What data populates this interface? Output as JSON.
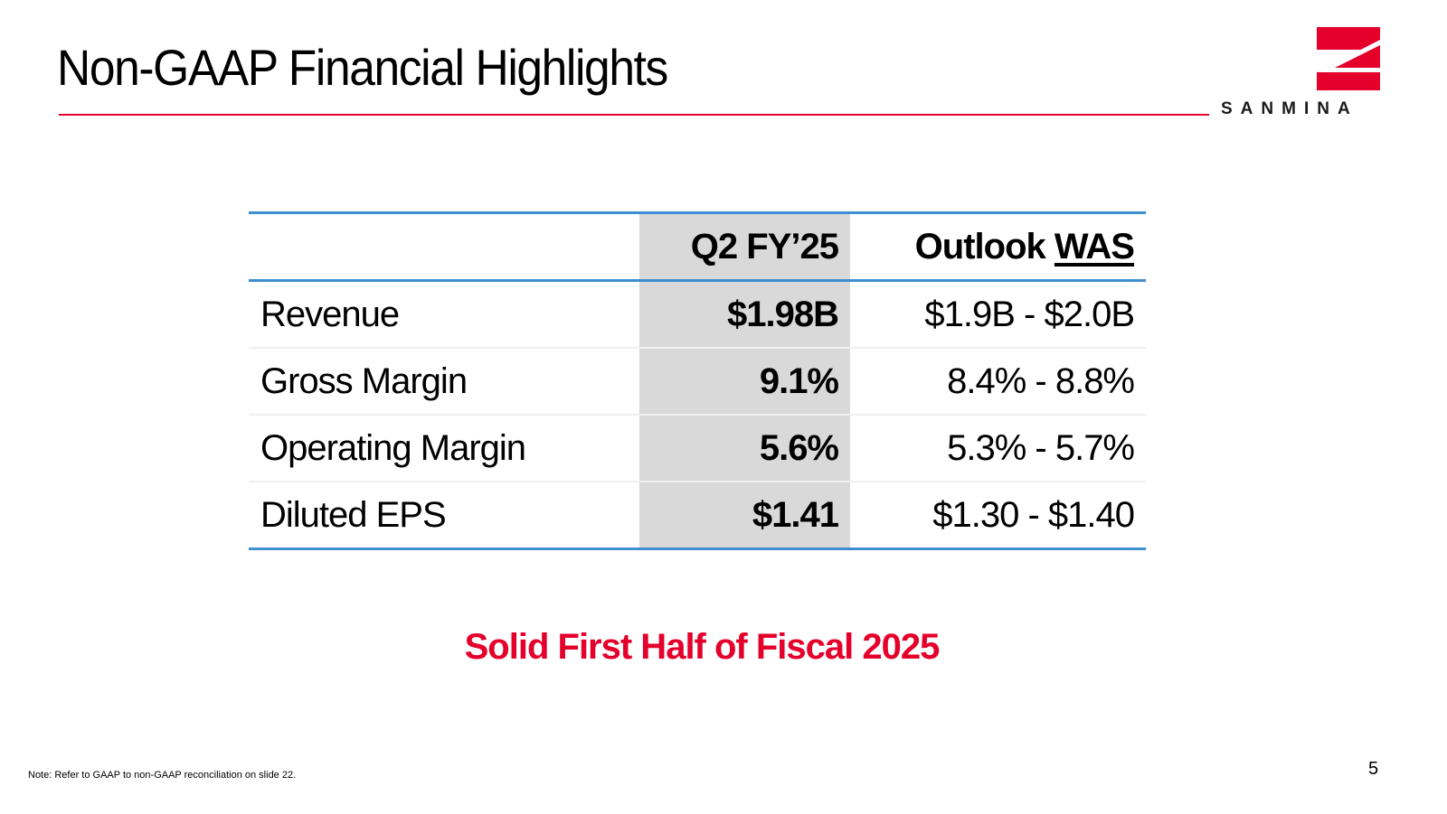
{
  "header": {
    "title": "Non-GAAP Financial Highlights"
  },
  "logo": {
    "wordmark": "SANMINA",
    "icon": "sanmina-s-logo-icon",
    "color": "#e4002b"
  },
  "table": {
    "headers": {
      "label": "",
      "q2": "Q2 FY’25",
      "outlook_prefix": "Outlook ",
      "outlook_was": "WAS"
    },
    "rows": [
      {
        "label": "Revenue",
        "q2": "$1.98B",
        "outlook": "$1.9B - $2.0B"
      },
      {
        "label": "Gross Margin",
        "q2": "9.1%",
        "outlook": "8.4% - 8.8%"
      },
      {
        "label": "Operating Margin",
        "q2": "5.6%",
        "outlook": "5.3% - 5.7%"
      },
      {
        "label": "Diluted EPS",
        "q2": "$1.41",
        "outlook": "$1.30 - $1.40"
      }
    ]
  },
  "tagline": "Solid First Half of Fiscal 2025",
  "footer": {
    "note": "Note: Refer to GAAP to non-GAAP reconciliation on slide 22.",
    "page_number": "5"
  },
  "colors": {
    "accent_red": "#e4002b",
    "rule_blue": "#3e8ed0",
    "highlight_gray": "#d9d9d9"
  }
}
